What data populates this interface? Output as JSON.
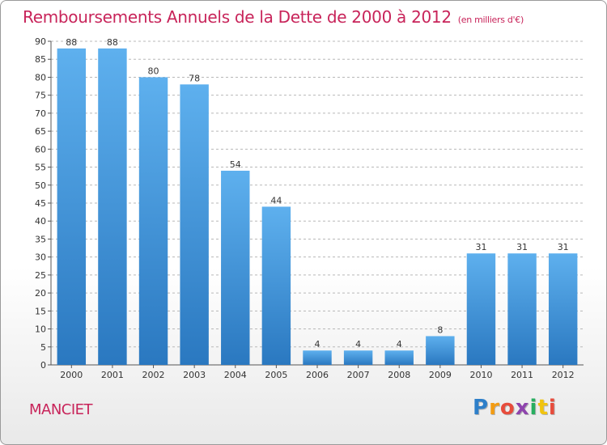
{
  "chart_data": {
    "type": "bar",
    "title": "Remboursements Annuels de la Dette de 2000 à 2012",
    "subtitle": "(en milliers d'€)",
    "categories": [
      "2000",
      "2001",
      "2002",
      "2003",
      "2004",
      "2005",
      "2006",
      "2007",
      "2008",
      "2009",
      "2010",
      "2011",
      "2012"
    ],
    "values": [
      88,
      88,
      80,
      78,
      54,
      44,
      4,
      4,
      4,
      8,
      31,
      31,
      31
    ],
    "ylim": [
      0,
      90
    ],
    "yticks": [
      0,
      5,
      10,
      15,
      20,
      25,
      30,
      35,
      40,
      45,
      50,
      55,
      60,
      65,
      70,
      75,
      80,
      85,
      90
    ],
    "grid": true,
    "bar_color": "#3d8fd6"
  },
  "footer": {
    "commune": "MANCIET",
    "logo_letters": [
      {
        "ch": "P",
        "color": "#2e7fc9"
      },
      {
        "ch": "r",
        "color": "#f39c12"
      },
      {
        "ch": "o",
        "color": "#e74c3c"
      },
      {
        "ch": "x",
        "color": "#8e44ad"
      },
      {
        "ch": "i",
        "color": "#27ae60"
      },
      {
        "ch": "t",
        "color": "#f1c40f"
      },
      {
        "ch": "i",
        "color": "#e74c3c"
      }
    ]
  }
}
